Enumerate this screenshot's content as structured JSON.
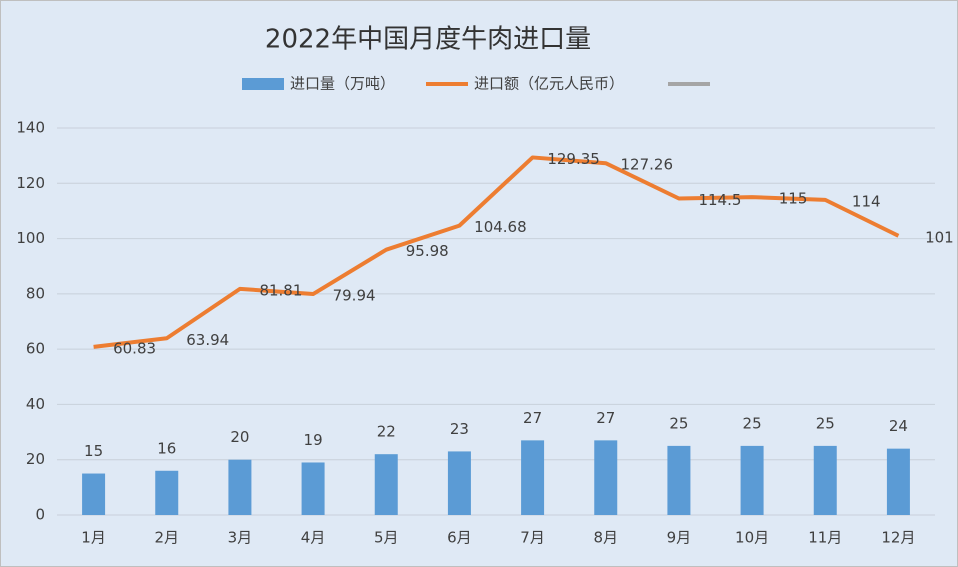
{
  "chart_data": {
    "type": "combo",
    "title": "2022年中国月度牛肉进口量",
    "categories": [
      "1月",
      "2月",
      "3月",
      "4月",
      "5月",
      "6月",
      "7月",
      "8月",
      "9月",
      "10月",
      "11月",
      "12月"
    ],
    "series": [
      {
        "name": "进口量（万吨）",
        "type": "bar",
        "color": "#5b9bd5",
        "values": [
          15,
          16,
          20,
          19,
          22,
          23,
          27,
          27,
          25,
          25,
          25,
          24
        ]
      },
      {
        "name": "进口额（亿元人民币）",
        "type": "line",
        "color": "#ed7d31",
        "values": [
          60.83,
          63.94,
          81.81,
          79.94,
          95.98,
          104.68,
          129.35,
          127.26,
          114.5,
          115,
          114,
          101
        ]
      }
    ],
    "ylim": [
      0,
      140
    ],
    "yticks": [
      0,
      20,
      40,
      60,
      80,
      100,
      120,
      140
    ],
    "grid": true
  }
}
